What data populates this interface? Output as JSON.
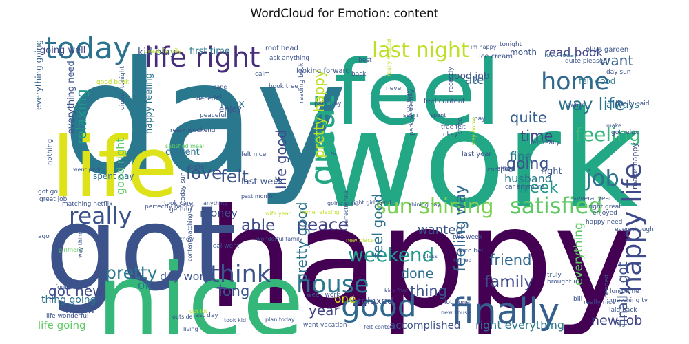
{
  "title": "WordCloud for Emotion: content",
  "words": [
    {
      "text": "day",
      "color": "#2a788e"
    },
    {
      "text": "work",
      "color": "#22a884"
    },
    {
      "text": "feel",
      "color": "#20a386"
    },
    {
      "text": "happy",
      "color": "#440154"
    },
    {
      "text": "got",
      "color": "#3b528b"
    },
    {
      "text": "nice",
      "color": "#35b779"
    },
    {
      "text": "life",
      "color": "#dde318"
    },
    {
      "text": "today",
      "color": "#2c728e"
    },
    {
      "text": "life right",
      "color": "#472c7a"
    },
    {
      "text": "last night",
      "color": "#bddf26"
    },
    {
      "text": "want",
      "color": "#355f8d"
    },
    {
      "text": "read book",
      "color": "#414487"
    },
    {
      "text": "home",
      "color": "#31688e"
    },
    {
      "text": "way life",
      "color": "#2c728e"
    },
    {
      "text": "feeling",
      "color": "#35b779"
    },
    {
      "text": "quite",
      "color": "#355f8d"
    },
    {
      "text": "time",
      "color": "#414487"
    },
    {
      "text": "going",
      "color": "#3b528b"
    },
    {
      "text": "week",
      "color": "#1f9a8a"
    },
    {
      "text": "job",
      "color": "#2c728e"
    },
    {
      "text": "felt",
      "color": "#3b528b"
    },
    {
      "text": "love",
      "color": "#3b528b"
    },
    {
      "text": "able",
      "color": "#3e4a89"
    },
    {
      "text": "great",
      "color": "#22a884"
    },
    {
      "text": "sun shining",
      "color": "#7ad151"
    },
    {
      "text": "satisfied",
      "color": "#5ec962"
    },
    {
      "text": "happy life",
      "color": "#3e4a89"
    },
    {
      "text": "really",
      "color": "#3b528b"
    },
    {
      "text": "think",
      "color": "#3b528b"
    },
    {
      "text": "house",
      "color": "#2a788e"
    },
    {
      "text": "good",
      "color": "#31688e"
    },
    {
      "text": "finally",
      "color": "#355f8d"
    },
    {
      "text": "weekend",
      "color": "#1f9a8a"
    },
    {
      "text": "pretty",
      "color": "#2a788e"
    },
    {
      "text": "peace",
      "color": "#414487"
    },
    {
      "text": "done",
      "color": "#2c728e"
    },
    {
      "text": "family",
      "color": "#3e4a89"
    },
    {
      "text": "friend",
      "color": "#31688e"
    },
    {
      "text": "thing",
      "color": "#3b528b"
    },
    {
      "text": "new job",
      "color": "#414487"
    },
    {
      "text": "got new",
      "color": "#3e4a89"
    },
    {
      "text": "ok",
      "color": "#2a788e"
    },
    {
      "text": "wanted",
      "color": "#3b528b"
    },
    {
      "text": "feeling way",
      "color": "#31688e"
    },
    {
      "text": "pretty good",
      "color": "#2c728e"
    },
    {
      "text": "life good",
      "color": "#3e4a89"
    },
    {
      "text": "pretty happy",
      "color": "#bddf26"
    },
    {
      "text": "feel good",
      "color": "#2c728e"
    },
    {
      "text": "finally got",
      "color": "#3b528b"
    },
    {
      "text": "long",
      "color": "#3b528b"
    },
    {
      "text": "year",
      "color": "#414487"
    },
    {
      "text": "relaxing",
      "color": "#1f9a8a"
    },
    {
      "text": "relax",
      "color": "#2c728e"
    },
    {
      "text": "enjoy",
      "color": "#3b528b"
    },
    {
      "text": "good right",
      "color": "#5ec962"
    },
    {
      "text": "ate",
      "color": "#31688e"
    },
    {
      "text": "fine",
      "color": "#2a788e"
    },
    {
      "text": "everything",
      "color": "#5ec962"
    },
    {
      "text": "make happy",
      "color": "#3e4a89"
    },
    {
      "text": "money",
      "color": "#3b528b"
    },
    {
      "text": "much",
      "color": "#3b528b"
    },
    {
      "text": "thing going",
      "color": "#2c728e"
    },
    {
      "text": "life going",
      "color": "#5ec962"
    },
    {
      "text": "accomplished",
      "color": "#3b528b"
    },
    {
      "text": "right everything",
      "color": "#2a788e"
    },
    {
      "text": "relaxed",
      "color": "#3e4a89"
    },
    {
      "text": "one",
      "color": "#dde318"
    },
    {
      "text": "day work",
      "color": "#3b528b"
    },
    {
      "text": "going well",
      "color": "#414487"
    },
    {
      "text": "first time",
      "color": "#2a788e"
    },
    {
      "text": "kid play",
      "color": "#3b528b"
    },
    {
      "text": "happy feeling",
      "color": "#2c728e"
    },
    {
      "text": "content",
      "color": "#2c728e"
    },
    {
      "text": "spent day",
      "color": "#2c728e"
    },
    {
      "text": "everything going",
      "color": "#355f8d"
    },
    {
      "text": "everything need",
      "color": "#3b528b"
    },
    {
      "text": "good job",
      "color": "#3b528b"
    },
    {
      "text": "felt good",
      "color": "#2a788e"
    },
    {
      "text": "always",
      "color": "#2c728e"
    },
    {
      "text": "right",
      "color": "#3b528b"
    },
    {
      "text": "last week",
      "color": "#3b528b"
    },
    {
      "text": "husband",
      "color": "#2a788e"
    },
    {
      "text": "ice cream",
      "color": "#3b528b"
    },
    {
      "text": "olive garden",
      "color": "#3b528b"
    },
    {
      "text": "month",
      "color": "#3b528b"
    },
    {
      "text": "food today",
      "color": "#31688e"
    },
    {
      "text": "quite pleased",
      "color": "#3b528b"
    },
    {
      "text": "day sun",
      "color": "#3b528b"
    },
    {
      "text": "finally paid",
      "color": "#3b528b"
    },
    {
      "text": "got relax",
      "color": "#3b528b"
    },
    {
      "text": "feel content",
      "color": "#3b528b"
    },
    {
      "text": "last year",
      "color": "#3b528b"
    },
    {
      "text": "felt really",
      "color": "#3b528b"
    },
    {
      "text": "roof head",
      "color": "#3b528b"
    },
    {
      "text": "ask anything",
      "color": "#3b528b"
    },
    {
      "text": "looking forward",
      "color": "#3b528b"
    },
    {
      "text": "book tree",
      "color": "#3b528b"
    },
    {
      "text": "relax weekend",
      "color": "#3b528b"
    },
    {
      "text": "satisfied meal",
      "color": "#5ec962"
    },
    {
      "text": "tree felt",
      "color": "#3b528b"
    },
    {
      "text": "okay",
      "color": "#3b528b"
    },
    {
      "text": "park yesterday",
      "color": "#3b528b"
    },
    {
      "text": "park day",
      "color": "#3b528b"
    },
    {
      "text": "perfectly happy",
      "color": "#3b528b"
    },
    {
      "text": "felt nice",
      "color": "#3b528b"
    },
    {
      "text": "took care",
      "color": "#3b528b"
    },
    {
      "text": "anything",
      "color": "#3b528b"
    },
    {
      "text": "meal went",
      "color": "#3b528b"
    },
    {
      "text": "wonderful family",
      "color": "#3b528b"
    },
    {
      "text": "content watching",
      "color": "#3b528b"
    },
    {
      "text": "great job",
      "color": "#3b528b"
    },
    {
      "text": "matching netflix",
      "color": "#3b528b"
    },
    {
      "text": "got go",
      "color": "#3b528b"
    },
    {
      "text": "went park",
      "color": "#3b528b"
    },
    {
      "text": "great family",
      "color": "#bddf26"
    },
    {
      "text": "good book",
      "color": "#bddf26"
    },
    {
      "text": "decent",
      "color": "#3b528b"
    },
    {
      "text": "peaceful",
      "color": "#3b528b"
    },
    {
      "text": "calm",
      "color": "#3b528b"
    },
    {
      "text": "cane",
      "color": "#3b528b"
    },
    {
      "text": "sat",
      "color": "#3b528b"
    },
    {
      "text": "dinner tonight",
      "color": "#3b528b"
    },
    {
      "text": "go way",
      "color": "#3b528b"
    },
    {
      "text": "seen",
      "color": "#3b528b"
    },
    {
      "text": "spent",
      "color": "#3b528b"
    },
    {
      "text": "three",
      "color": "#3b528b"
    },
    {
      "text": "stay home",
      "color": "#bddf26"
    },
    {
      "text": "pay",
      "color": "#3b528b"
    },
    {
      "text": "awhile",
      "color": "#3b528b"
    },
    {
      "text": "afford",
      "color": "#3b528b"
    },
    {
      "text": "complain",
      "color": "#3b528b"
    },
    {
      "text": "car anymore",
      "color": "#3b528b"
    },
    {
      "text": "several year",
      "color": "#3b528b"
    },
    {
      "text": "right great",
      "color": "#3b528b"
    },
    {
      "text": "enjoyed",
      "color": "#3b528b"
    },
    {
      "text": "happy need",
      "color": "#3b528b"
    },
    {
      "text": "even though",
      "color": "#3b528b"
    },
    {
      "text": "two week",
      "color": "#3b528b"
    },
    {
      "text": "taco bell",
      "color": "#3b528b"
    },
    {
      "text": "class",
      "color": "#3b528b"
    },
    {
      "text": "turned",
      "color": "#3b528b"
    },
    {
      "text": "truly",
      "color": "#3b528b"
    },
    {
      "text": "brought u",
      "color": "#3b528b"
    },
    {
      "text": "bill",
      "color": "#3b528b"
    },
    {
      "text": "needed",
      "color": "#3b528b"
    },
    {
      "text": "long time",
      "color": "#3b528b"
    },
    {
      "text": "really nice",
      "color": "#3b528b"
    },
    {
      "text": "matching tv",
      "color": "#3b528b"
    },
    {
      "text": "laid back",
      "color": "#3b528b"
    },
    {
      "text": "lot done",
      "color": "#3b528b"
    },
    {
      "text": "new house",
      "color": "#3b528b"
    },
    {
      "text": "kick foot",
      "color": "#3b528b"
    },
    {
      "text": "felt content",
      "color": "#3b528b"
    },
    {
      "text": "went vacation",
      "color": "#3b528b"
    },
    {
      "text": "week work",
      "color": "#3b528b"
    },
    {
      "text": "rest day",
      "color": "#3b528b"
    },
    {
      "text": "took kid",
      "color": "#3b528b"
    },
    {
      "text": "plan today",
      "color": "#3b528b"
    },
    {
      "text": "outside",
      "color": "#3b528b"
    },
    {
      "text": "living",
      "color": "#3b528b"
    },
    {
      "text": "got lot",
      "color": "#bddf26"
    },
    {
      "text": "life wonderful",
      "color": "#3b528b"
    },
    {
      "text": "found",
      "color": "#3b528b"
    },
    {
      "text": "ago",
      "color": "#3b528b"
    },
    {
      "text": "girlfriend",
      "color": "#5ec962"
    },
    {
      "text": "way thing",
      "color": "#3b528b"
    },
    {
      "text": "know",
      "color": "#3b528b"
    },
    {
      "text": "today sun",
      "color": "#3b528b"
    },
    {
      "text": "getting",
      "color": "#3b528b"
    },
    {
      "text": "better",
      "color": "#3b528b"
    },
    {
      "text": "past month",
      "color": "#3b528b"
    },
    {
      "text": "wife year",
      "color": "#bddf26"
    },
    {
      "text": "home relaxing",
      "color": "#bddf26"
    },
    {
      "text": "going great",
      "color": "#3b528b"
    },
    {
      "text": "right girlfriend",
      "color": "#3b528b"
    },
    {
      "text": "perfectly fine",
      "color": "#3b528b"
    },
    {
      "text": "shining day",
      "color": "#3b528b"
    },
    {
      "text": "new place",
      "color": "#bddf26"
    },
    {
      "text": "nothing",
      "color": "#3b528b"
    },
    {
      "text": "reading book",
      "color": "#3b528b"
    },
    {
      "text": "back",
      "color": "#3b528b"
    },
    {
      "text": "best",
      "color": "#3b528b"
    },
    {
      "text": "never",
      "color": "#3b528b"
    },
    {
      "text": "really wanted",
      "color": "#bddf26"
    },
    {
      "text": "tonight",
      "color": "#3b528b"
    },
    {
      "text": "im happy",
      "color": "#3b528b"
    },
    {
      "text": "recently",
      "color": "#3b528b"
    },
    {
      "text": "make",
      "color": "#3b528b"
    },
    {
      "text": "tv",
      "color": "#3b528b"
    }
  ]
}
